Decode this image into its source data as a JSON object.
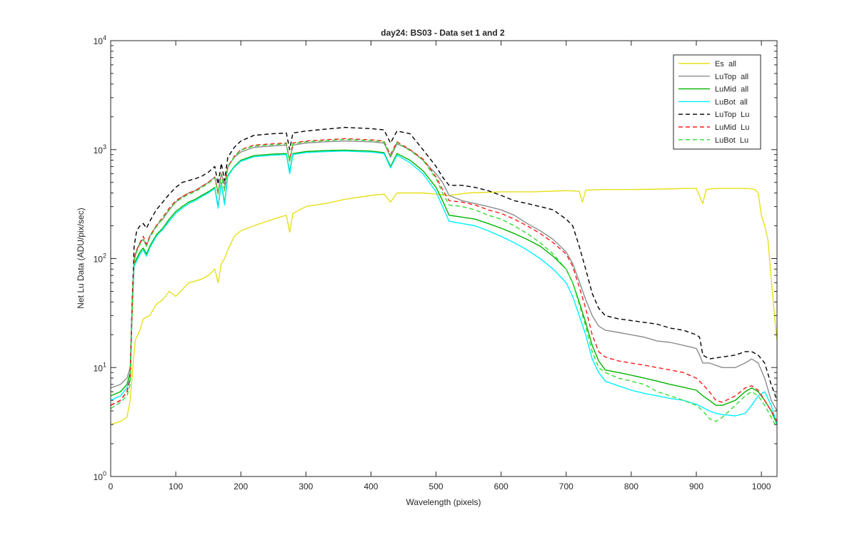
{
  "chart_data": {
    "type": "line",
    "title": "day24: BS03 - Data set 1 and 2",
    "xlabel": "Wavelength (pixels)",
    "ylabel": "Net Lu Data (ADU/pix/sec)",
    "xlim": [
      0,
      1024
    ],
    "ylim": [
      1,
      10000
    ],
    "yscale": "log",
    "grid": false,
    "legend_position": "top-right",
    "xticks": [
      "0",
      "100",
      "200",
      "300",
      "400",
      "500",
      "600",
      "700",
      "800",
      "900",
      "1000"
    ],
    "yticks": [
      {
        "base": "10",
        "exp": "0"
      },
      {
        "base": "10",
        "exp": "1"
      },
      {
        "base": "10",
        "exp": "2"
      },
      {
        "base": "10",
        "exp": "3"
      },
      {
        "base": "10",
        "exp": "4"
      }
    ],
    "series": [
      {
        "name": "Es  all",
        "color": "#e6e01a",
        "dash": "solid",
        "x": [
          0,
          15,
          25,
          30,
          35,
          38,
          45,
          50,
          60,
          70,
          80,
          90,
          100,
          110,
          120,
          130,
          140,
          150,
          160,
          165,
          170,
          175,
          180,
          190,
          200,
          220,
          250,
          270,
          275,
          280,
          300,
          330,
          360,
          400,
          420,
          430,
          440,
          480,
          500,
          520,
          550,
          600,
          650,
          700,
          720,
          725,
          730,
          760,
          800,
          850,
          880,
          900,
          910,
          915,
          930,
          960,
          980,
          990,
          995,
          1000,
          1005,
          1010,
          1020,
          1024
        ],
        "y": [
          3.0,
          3.2,
          3.5,
          5,
          12,
          18,
          22,
          28,
          30,
          38,
          42,
          50,
          45,
          52,
          60,
          62,
          65,
          70,
          80,
          60,
          90,
          100,
          120,
          160,
          180,
          200,
          230,
          250,
          175,
          260,
          300,
          320,
          350,
          380,
          390,
          330,
          400,
          400,
          390,
          380,
          400,
          410,
          410,
          420,
          415,
          330,
          425,
          430,
          430,
          435,
          440,
          440,
          320,
          430,
          440,
          440,
          440,
          430,
          400,
          250,
          200,
          150,
          30,
          18
        ]
      },
      {
        "name": "LuTop  all",
        "color": "#8c8c8c",
        "dash": "solid",
        "x": [
          0,
          15,
          25,
          30,
          33,
          36,
          40,
          45,
          50,
          55,
          60,
          70,
          80,
          90,
          100,
          110,
          120,
          130,
          140,
          150,
          160,
          165,
          170,
          175,
          180,
          190,
          200,
          220,
          250,
          270,
          275,
          280,
          300,
          330,
          360,
          400,
          420,
          430,
          440,
          460,
          480,
          500,
          510,
          520,
          540,
          560,
          580,
          600,
          620,
          640,
          660,
          680,
          700,
          710,
          720,
          730,
          740,
          750,
          760,
          780,
          800,
          820,
          840,
          860,
          880,
          900,
          905,
          910,
          920,
          940,
          960,
          975,
          985,
          995,
          1005,
          1015,
          1024
        ],
        "y": [
          6.5,
          7,
          8,
          10,
          40,
          100,
          120,
          140,
          150,
          130,
          160,
          200,
          230,
          280,
          330,
          370,
          400,
          420,
          460,
          500,
          560,
          400,
          600,
          480,
          700,
          850,
          950,
          1050,
          1080,
          1100,
          780,
          1100,
          1150,
          1180,
          1200,
          1180,
          1150,
          850,
          1130,
          1000,
          800,
          600,
          500,
          380,
          340,
          320,
          300,
          280,
          250,
          210,
          180,
          150,
          115,
          90,
          62,
          42,
          30,
          24,
          22,
          21,
          20,
          19,
          17.5,
          17,
          16,
          15,
          13,
          11,
          11,
          10,
          10,
          11,
          12,
          11,
          8,
          5,
          4
        ]
      },
      {
        "name": "LuMid  all",
        "color": "#00b300",
        "dash": "solid",
        "x": [
          0,
          15,
          25,
          30,
          33,
          36,
          40,
          45,
          50,
          55,
          60,
          70,
          80,
          90,
          100,
          110,
          120,
          130,
          140,
          150,
          160,
          165,
          170,
          175,
          180,
          190,
          200,
          220,
          250,
          270,
          275,
          280,
          300,
          330,
          360,
          400,
          420,
          430,
          440,
          460,
          480,
          500,
          510,
          520,
          540,
          560,
          580,
          600,
          620,
          640,
          660,
          680,
          700,
          710,
          720,
          730,
          740,
          750,
          760,
          780,
          800,
          820,
          840,
          860,
          880,
          900,
          910,
          920,
          930,
          940,
          960,
          975,
          985,
          995,
          1005,
          1015,
          1024
        ],
        "y": [
          5.5,
          6,
          7,
          9,
          35,
          90,
          100,
          115,
          125,
          110,
          130,
          165,
          190,
          230,
          270,
          300,
          330,
          350,
          380,
          410,
          450,
          300,
          500,
          320,
          580,
          700,
          800,
          880,
          910,
          920,
          620,
          920,
          960,
          980,
          990,
          970,
          940,
          700,
          920,
          800,
          640,
          450,
          340,
          250,
          240,
          230,
          210,
          190,
          170,
          150,
          130,
          105,
          80,
          60,
          40,
          26,
          16,
          11.5,
          9.5,
          9,
          8.5,
          8,
          7.5,
          7,
          6.6,
          6.2,
          5.5,
          5,
          4.5,
          4.5,
          5,
          6,
          6.5,
          6,
          5,
          4,
          3
        ]
      },
      {
        "name": "LuBot  all",
        "color": "#00f0ff",
        "dash": "solid",
        "x": [
          0,
          15,
          25,
          30,
          33,
          36,
          40,
          45,
          50,
          55,
          60,
          70,
          80,
          90,
          100,
          110,
          120,
          130,
          140,
          150,
          160,
          165,
          170,
          175,
          180,
          190,
          200,
          220,
          250,
          270,
          275,
          280,
          300,
          330,
          360,
          400,
          420,
          430,
          440,
          460,
          480,
          500,
          510,
          520,
          540,
          560,
          580,
          600,
          620,
          640,
          660,
          680,
          700,
          710,
          720,
          730,
          740,
          750,
          760,
          780,
          800,
          820,
          840,
          860,
          880,
          900,
          910,
          920,
          930,
          940,
          960,
          975,
          985,
          995,
          1005,
          1015,
          1024
        ],
        "y": [
          5,
          5.5,
          6.5,
          8,
          33,
          85,
          95,
          110,
          120,
          105,
          125,
          160,
          185,
          220,
          260,
          290,
          320,
          340,
          370,
          400,
          440,
          290,
          490,
          310,
          570,
          690,
          780,
          860,
          890,
          900,
          600,
          900,
          940,
          960,
          970,
          950,
          920,
          680,
          890,
          760,
          600,
          410,
          300,
          220,
          210,
          200,
          180,
          160,
          140,
          120,
          100,
          80,
          60,
          45,
          30,
          20,
          12,
          9,
          7.5,
          6.8,
          6.2,
          5.8,
          5.5,
          5.2,
          5,
          4.6,
          4.3,
          4.0,
          3.8,
          3.7,
          3.6,
          3.8,
          4.5,
          5.5,
          6,
          4.5,
          3
        ]
      },
      {
        "name": "LuTop  Lu",
        "color": "#000000",
        "dash": "dashed",
        "x": [
          0,
          15,
          25,
          30,
          33,
          36,
          40,
          45,
          50,
          55,
          60,
          70,
          80,
          90,
          100,
          110,
          120,
          130,
          140,
          150,
          160,
          165,
          170,
          175,
          180,
          190,
          200,
          220,
          250,
          270,
          275,
          280,
          300,
          330,
          360,
          400,
          420,
          430,
          440,
          460,
          480,
          500,
          510,
          520,
          540,
          560,
          580,
          600,
          620,
          640,
          660,
          680,
          700,
          710,
          720,
          730,
          740,
          750,
          760,
          780,
          800,
          820,
          840,
          860,
          880,
          900,
          905,
          910,
          920,
          940,
          960,
          975,
          985,
          995,
          1005,
          1015,
          1024
        ],
        "y": [
          4.5,
          5,
          6,
          8,
          40,
          130,
          180,
          200,
          210,
          190,
          220,
          280,
          330,
          390,
          450,
          500,
          520,
          540,
          570,
          620,
          700,
          480,
          750,
          520,
          850,
          1050,
          1200,
          1350,
          1400,
          1420,
          1000,
          1420,
          1480,
          1540,
          1600,
          1560,
          1520,
          1150,
          1480,
          1400,
          1000,
          700,
          560,
          470,
          470,
          450,
          420,
          380,
          340,
          320,
          300,
          280,
          230,
          200,
          130,
          80,
          48,
          35,
          30,
          28,
          27,
          26,
          25,
          23,
          22,
          20,
          19,
          13,
          12,
          12.5,
          13,
          14,
          14,
          13,
          11,
          7,
          5
        ]
      },
      {
        "name": "LuMid  Lu",
        "color": "#ff1a1a",
        "dash": "dashed",
        "x": [
          0,
          15,
          25,
          30,
          33,
          36,
          40,
          45,
          50,
          55,
          60,
          70,
          80,
          90,
          100,
          110,
          120,
          130,
          140,
          150,
          160,
          165,
          170,
          175,
          180,
          190,
          200,
          220,
          250,
          270,
          275,
          280,
          300,
          330,
          360,
          400,
          420,
          430,
          440,
          460,
          480,
          500,
          510,
          520,
          540,
          560,
          580,
          600,
          620,
          640,
          660,
          680,
          700,
          710,
          720,
          730,
          740,
          750,
          760,
          780,
          800,
          820,
          840,
          860,
          880,
          900,
          910,
          920,
          930,
          940,
          960,
          975,
          985,
          995,
          1005,
          1015,
          1024
        ],
        "y": [
          4.5,
          5,
          6,
          8,
          35,
          100,
          120,
          140,
          160,
          135,
          160,
          200,
          240,
          290,
          340,
          370,
          400,
          420,
          460,
          500,
          560,
          400,
          600,
          430,
          700,
          870,
          1000,
          1100,
          1130,
          1150,
          800,
          1150,
          1200,
          1230,
          1260,
          1230,
          1200,
          900,
          1180,
          1000,
          820,
          560,
          430,
          340,
          330,
          310,
          280,
          260,
          230,
          200,
          170,
          140,
          110,
          85,
          55,
          35,
          20,
          14,
          12.5,
          11.5,
          11,
          10.5,
          10,
          9.5,
          9,
          8,
          7,
          6,
          5,
          4.8,
          5.5,
          6.5,
          6.8,
          6.2,
          5,
          4,
          3.2
        ]
      },
      {
        "name": "LuBot  Lu",
        "color": "#33dd33",
        "dash": "dashed",
        "x": [
          0,
          15,
          25,
          30,
          33,
          36,
          40,
          45,
          50,
          55,
          60,
          70,
          80,
          90,
          100,
          110,
          120,
          130,
          140,
          150,
          160,
          165,
          170,
          175,
          180,
          190,
          200,
          220,
          250,
          270,
          275,
          280,
          300,
          330,
          360,
          400,
          420,
          430,
          440,
          460,
          480,
          500,
          510,
          520,
          540,
          560,
          580,
          600,
          620,
          640,
          660,
          680,
          700,
          710,
          720,
          730,
          740,
          750,
          760,
          780,
          800,
          820,
          840,
          860,
          880,
          900,
          910,
          920,
          930,
          940,
          960,
          975,
          985,
          995,
          1005,
          1015,
          1024
        ],
        "y": [
          4.2,
          4.8,
          5.5,
          7,
          33,
          95,
          115,
          135,
          150,
          130,
          155,
          195,
          235,
          280,
          330,
          360,
          390,
          410,
          450,
          490,
          550,
          390,
          590,
          420,
          690,
          860,
          990,
          1080,
          1110,
          1130,
          780,
          1130,
          1180,
          1210,
          1240,
          1210,
          1180,
          880,
          1160,
          980,
          800,
          540,
          400,
          310,
          300,
          280,
          250,
          230,
          200,
          170,
          140,
          110,
          80,
          60,
          38,
          24,
          14,
          10,
          9,
          8,
          7.5,
          7,
          6,
          5.5,
          5,
          4.5,
          4,
          3.4,
          3.2,
          3.5,
          4.5,
          5.5,
          6,
          5.5,
          4.5,
          3.5,
          2.8
        ]
      }
    ]
  }
}
